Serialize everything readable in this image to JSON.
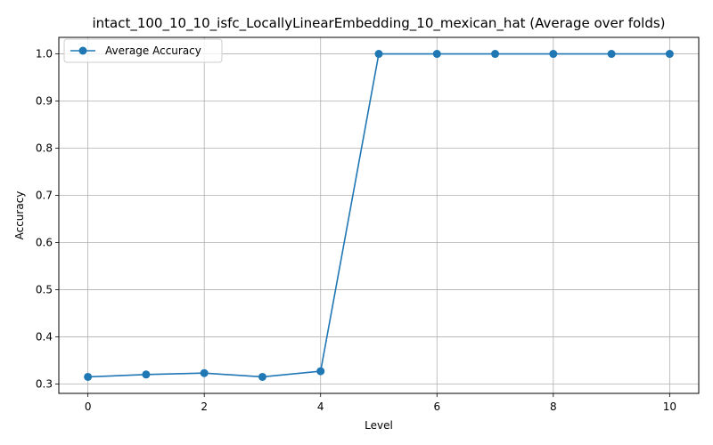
{
  "chart_data": {
    "type": "line",
    "title": "intact_100_10_10_isfc_LocallyLinearEmbedding_10_mexican_hat (Average over folds)",
    "xlabel": "Level",
    "ylabel": "Accuracy",
    "xlim": [
      -0.5,
      10.5
    ],
    "ylim": [
      0.28,
      1.035
    ],
    "xticks": [
      0,
      2,
      4,
      6,
      8,
      10
    ],
    "yticks": [
      0.3,
      0.4,
      0.5,
      0.6,
      0.7,
      0.8,
      0.9,
      1.0
    ],
    "grid": true,
    "legend_position": "top-left",
    "series": [
      {
        "name": "Average Accuracy",
        "color": "#1f77b4",
        "marker": "circle",
        "x": [
          0,
          1,
          2,
          3,
          4,
          5,
          6,
          7,
          8,
          9,
          10
        ],
        "y": [
          0.315,
          0.32,
          0.323,
          0.315,
          0.327,
          1.0,
          1.0,
          1.0,
          1.0,
          1.0,
          1.0
        ]
      }
    ]
  }
}
